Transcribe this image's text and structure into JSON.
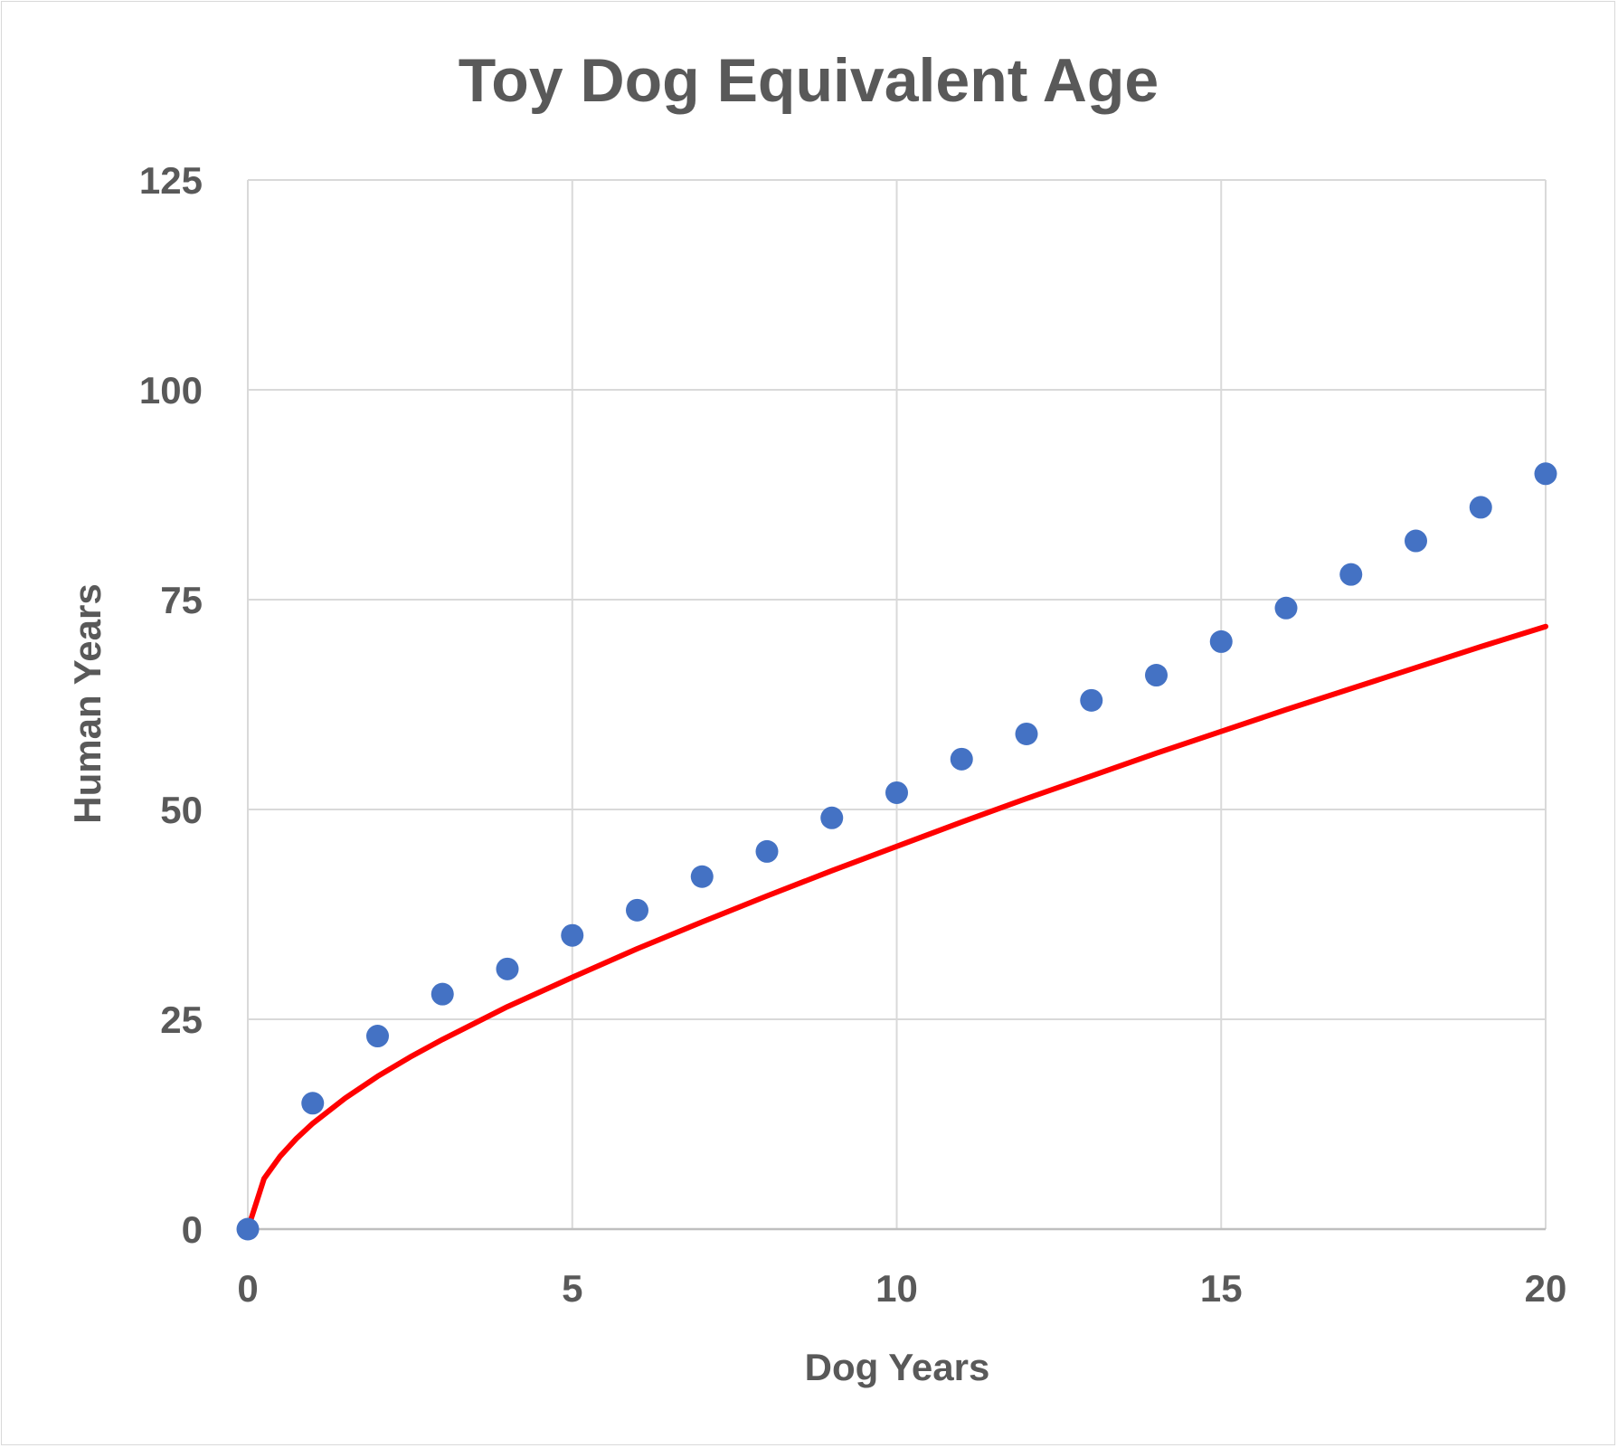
{
  "chart_data": {
    "type": "scatter",
    "title": "Toy Dog Equivalent Age",
    "xlabel": "Dog Years",
    "ylabel": "Human Years",
    "xlim": [
      0,
      20
    ],
    "ylim": [
      0,
      125
    ],
    "xticks": [
      0,
      5,
      10,
      15,
      20
    ],
    "yticks": [
      0,
      25,
      50,
      75,
      100,
      125
    ],
    "grid": true,
    "series": [
      {
        "type": "scatter",
        "color": "#4472c4",
        "x": [
          0,
          1,
          2,
          3,
          4,
          5,
          6,
          7,
          8,
          9,
          10,
          11,
          12,
          13,
          14,
          15,
          16,
          17,
          18,
          19,
          20
        ],
        "y": [
          0,
          15,
          23,
          28,
          31,
          35,
          38,
          42,
          45,
          49,
          52,
          56,
          59,
          63,
          66,
          70,
          74,
          78,
          82,
          86,
          90
        ]
      },
      {
        "type": "line",
        "color": "#ff0000",
        "x": [
          0,
          0.25,
          0.5,
          0.75,
          1,
          1.5,
          2,
          2.5,
          3,
          4,
          5,
          6,
          7,
          8,
          9,
          10,
          11,
          12,
          13,
          14,
          15,
          16,
          17,
          18,
          19,
          20
        ],
        "y": [
          0,
          6,
          8.7,
          10.8,
          12.6,
          15.6,
          18.2,
          20.5,
          22.6,
          26.5,
          30,
          33.4,
          36.6,
          39.7,
          42.7,
          45.6,
          48.5,
          51.3,
          54,
          56.7,
          59.3,
          61.9,
          64.4,
          66.9,
          69.4,
          71.8
        ]
      }
    ]
  }
}
